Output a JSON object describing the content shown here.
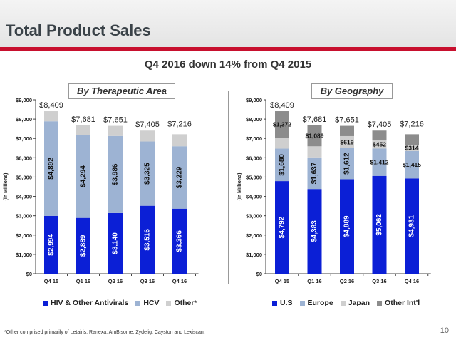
{
  "header": {
    "title": "Total Product Sales",
    "subtitle": "Q4 2016 down 14% from Q4 2015"
  },
  "footnote": "*Other comprised primarily of Letairis, Ranexa, AmBisome, Zydelig, Cayston and Lexiscan.",
  "page_number": "10",
  "chart_data": [
    {
      "type": "bar",
      "stacked": true,
      "title": "By Therapeutic Area",
      "ylabel": "(in Millions)",
      "ylim": [
        0,
        9000
      ],
      "ytick_step": 1000,
      "yticks": [
        "$0",
        "$1,000",
        "$2,000",
        "$3,000",
        "$4,000",
        "$5,000",
        "$6,000",
        "$7,000",
        "$8,000",
        "$9,000"
      ],
      "categories": [
        "Q4 15",
        "Q1 16",
        "Q2 16",
        "Q3 16",
        "Q4 16"
      ],
      "totals": [
        "$8,409",
        "$7,681",
        "$7,651",
        "$7,405",
        "$7,216"
      ],
      "total_values": [
        8409,
        7681,
        7651,
        7405,
        7216
      ],
      "series": [
        {
          "name": "HIV & Other Antivirals",
          "color": "#0b1fd6",
          "values": [
            2994,
            2889,
            3140,
            3516,
            3366
          ],
          "labels": [
            "$2,994",
            "$2,889",
            "$3,140",
            "$3,516",
            "$3,366"
          ]
        },
        {
          "name": "HCV",
          "color": "#9db3d3",
          "values": [
            4892,
            4294,
            3986,
            3325,
            3229
          ],
          "labels": [
            "$4,892",
            "$4,294",
            "$3,986",
            "$3,325",
            "$3,229"
          ]
        },
        {
          "name": "Other",
          "color": "#cfcfcf",
          "values": [
            523,
            498,
            525,
            564,
            621
          ],
          "labels": []
        }
      ],
      "legend": {
        "items": [
          "HIV & Other Antivirals",
          "HCV",
          "Other"
        ],
        "other_marker": "*",
        "placement": "bottom"
      }
    },
    {
      "type": "bar",
      "stacked": true,
      "title": "By Geography",
      "ylabel": "(in Millions)",
      "ylim": [
        0,
        9000
      ],
      "ytick_step": 1000,
      "yticks": [
        "$0",
        "$1,000",
        "$2,000",
        "$3,000",
        "$4,000",
        "$5,000",
        "$6,000",
        "$7,000",
        "$8,000",
        "$9,000"
      ],
      "categories": [
        "Q4 15",
        "Q1 16",
        "Q2 16",
        "Q3 16",
        "Q4 16"
      ],
      "totals": [
        "$8,409",
        "$7,681",
        "$7,651",
        "$7,405",
        "$7,216"
      ],
      "total_values": [
        8409,
        7681,
        7651,
        7405,
        7216
      ],
      "series": [
        {
          "name": "U.S",
          "color": "#0b1fd6",
          "values": [
            4792,
            4383,
            4889,
            5062,
            4931
          ],
          "labels": [
            "$4,792",
            "$4,383",
            "$4,889",
            "$5,062",
            "$4,931"
          ]
        },
        {
          "name": "Europe",
          "color": "#9db3d3",
          "values": [
            1680,
            1637,
            1612,
            1412,
            1415
          ],
          "labels": [
            "$1,680",
            "$1,637",
            "$1,612",
            "$1,412",
            "$1,415"
          ]
        },
        {
          "name": "Japan",
          "color": "#cfcfcf",
          "values": [
            565,
            572,
            619,
            452,
            314
          ],
          "labels": [
            "",
            "",
            "$619",
            "$452",
            "$314"
          ]
        },
        {
          "name": "Other Int'l",
          "color": "#8c8c8c",
          "values": [
            1372,
            1089,
            531,
            479,
            556
          ],
          "labels": [
            "$1,372",
            "$1,089",
            "",
            "",
            ""
          ]
        }
      ],
      "legend": {
        "items": [
          "U.S",
          "Europe",
          "Japan",
          "Other Int'l"
        ],
        "placement": "bottom"
      }
    }
  ]
}
